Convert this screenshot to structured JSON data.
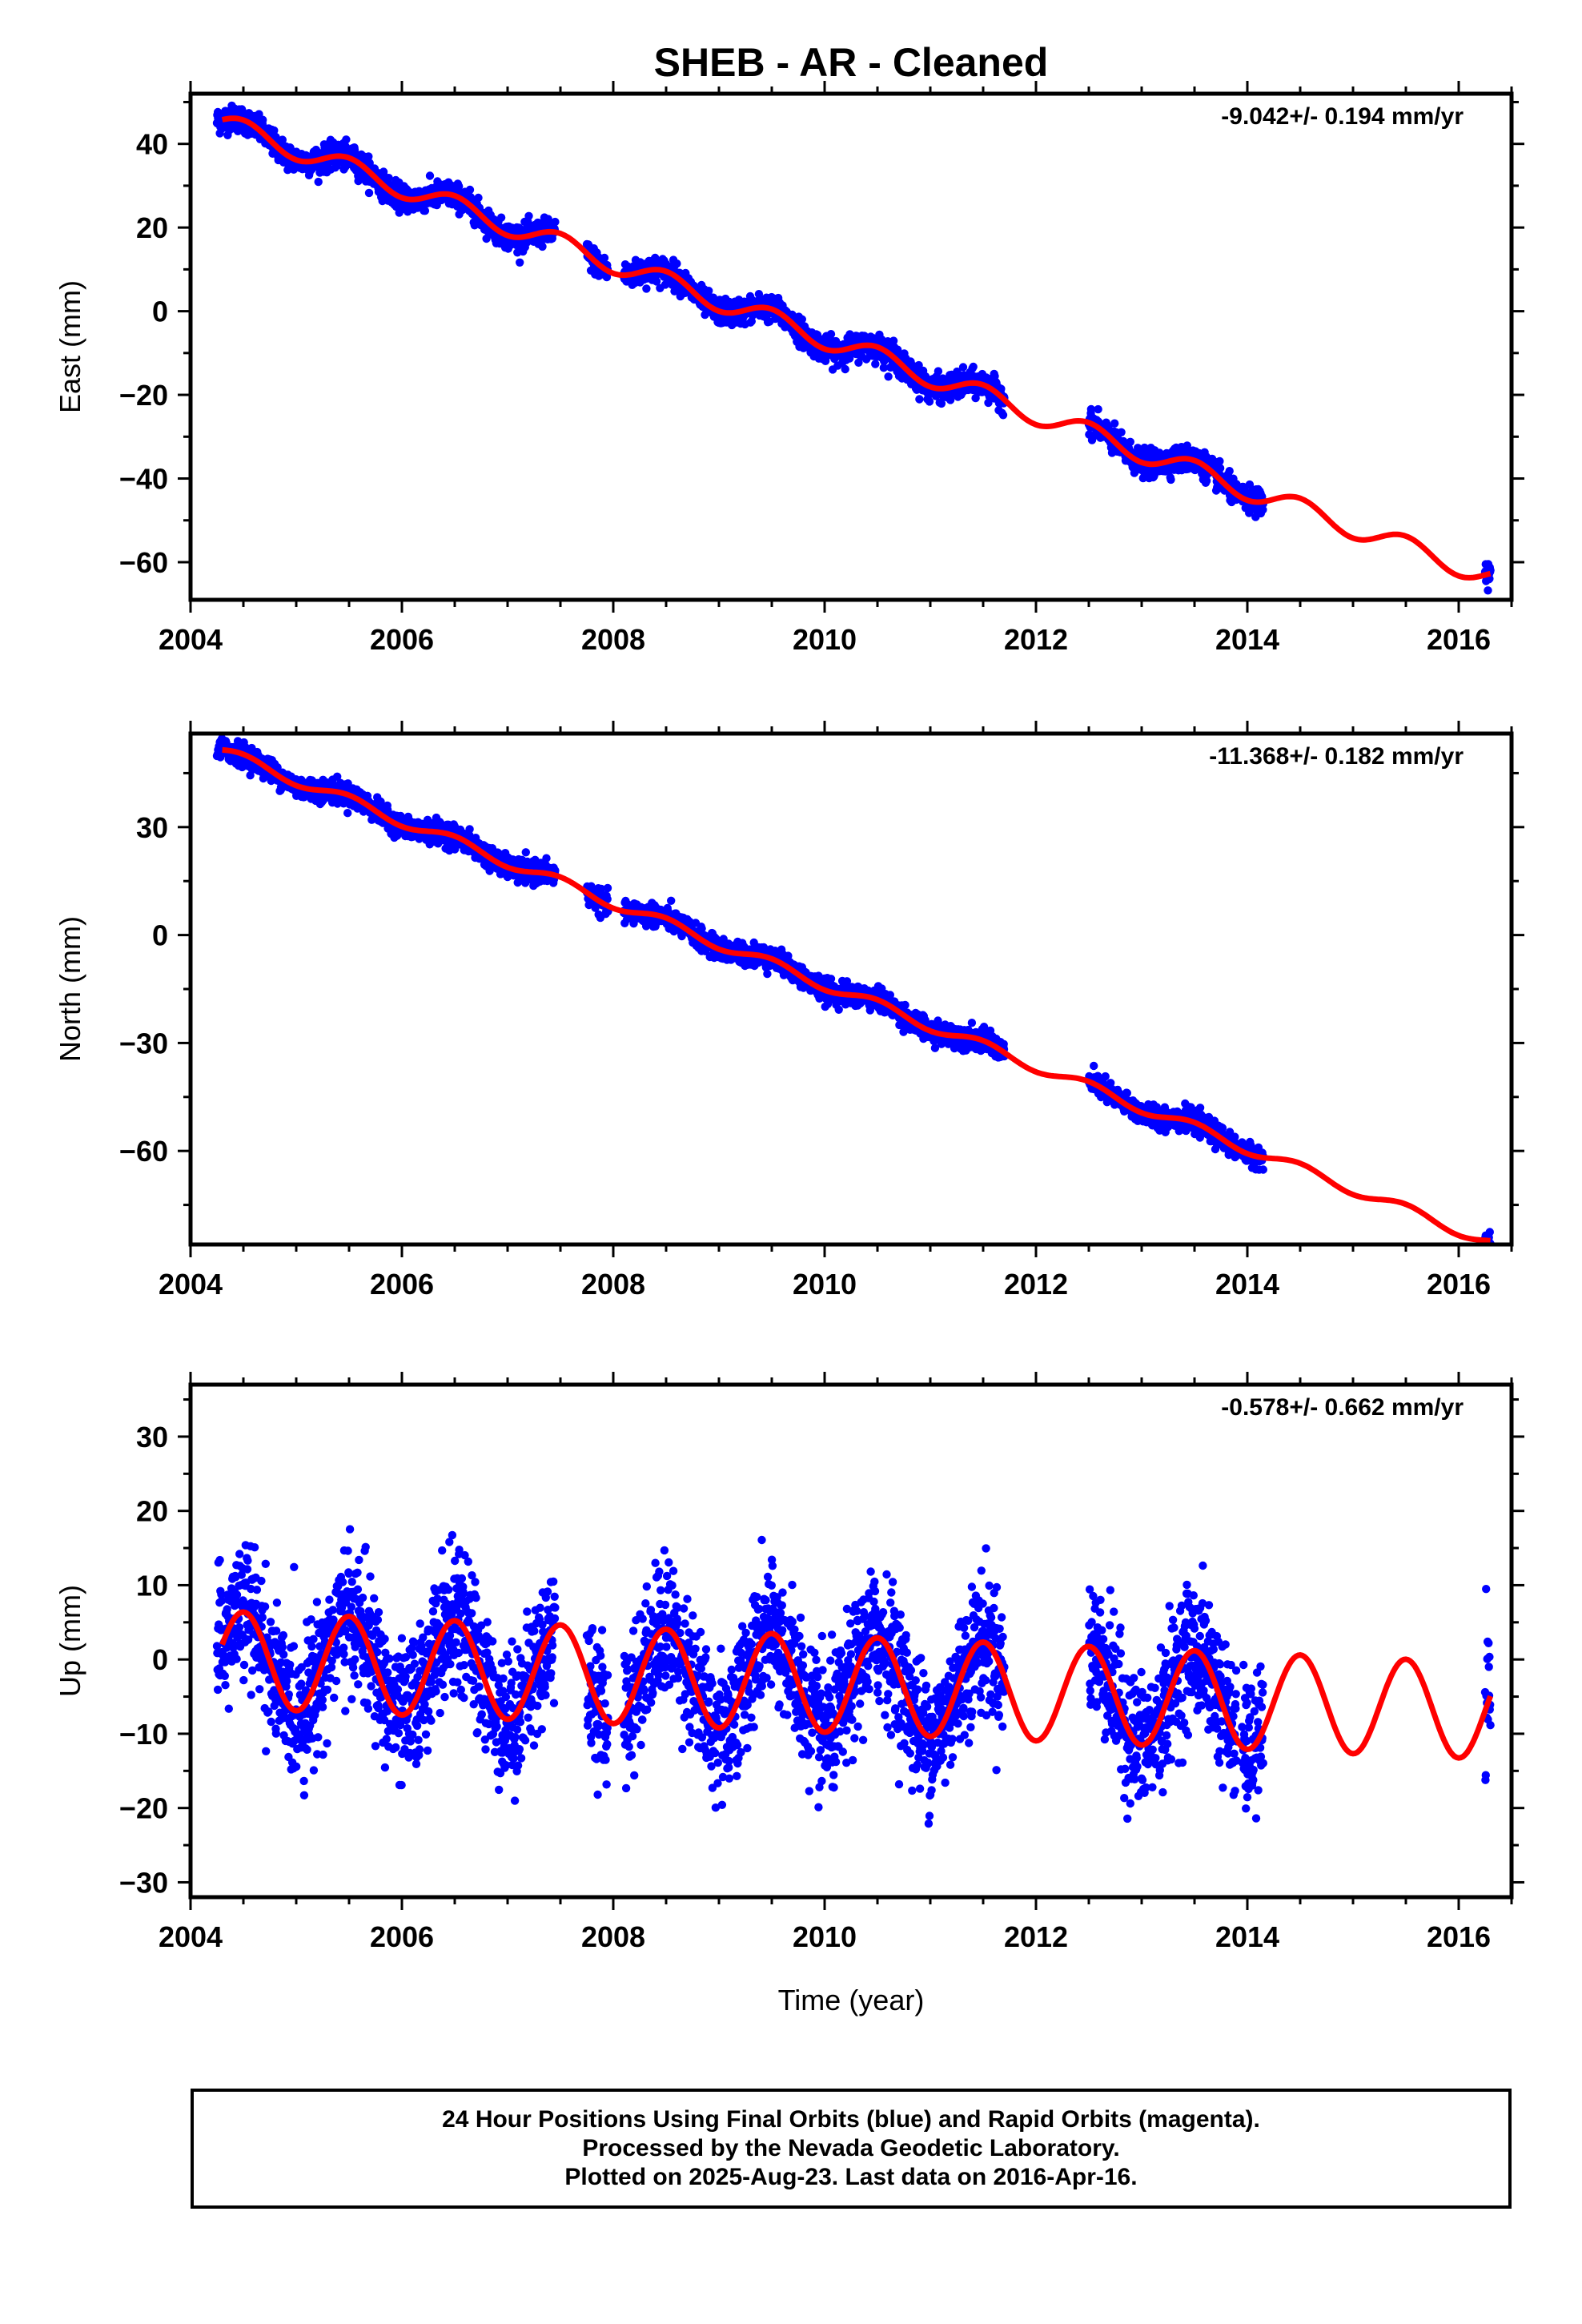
{
  "title": "SHEB  - AR - Cleaned",
  "xlabel": "Time (year)",
  "caption": [
    "24 Hour Positions Using Final Orbits (blue) and Rapid Orbits (magenta).",
    "Processed by the Nevada Geodetic Laboratory.",
    "Plotted on 2025-Aug-23. Last data on 2016-Apr-16."
  ],
  "colors": {
    "points": "#0000ff",
    "model": "#ff0000",
    "frame": "#000000"
  },
  "chart_data": [
    {
      "type": "scatter",
      "ylabel": "East (mm)",
      "rate_label": "-9.042+/- 0.194 mm/yr",
      "xlim": [
        2004,
        2016.5
      ],
      "ylim": [
        -69,
        52
      ],
      "x_ticks": [
        2004,
        2006,
        2008,
        2010,
        2012,
        2014,
        2016
      ],
      "y_ticks": [
        -60,
        -40,
        -20,
        0,
        20,
        40
      ],
      "rate_mm_per_yr": -9.042,
      "annual_amplitude_mm": 2.5,
      "anchor": [
        2004.3,
        45
      ],
      "data_segments": [
        [
          2004.25,
          2007.45
        ],
        [
          2007.75,
          2007.95
        ],
        [
          2008.1,
          2011.7
        ],
        [
          2012.5,
          2013.9
        ],
        [
          2013.95,
          2014.15
        ],
        [
          2016.25,
          2016.3
        ]
      ],
      "scatter_mm": 1.5,
      "grid": false
    },
    {
      "type": "scatter",
      "ylabel": "North (mm)",
      "rate_label": "-11.368+/- 0.182 mm/yr",
      "xlim": [
        2004,
        2016.5
      ],
      "ylim": [
        -86,
        56
      ],
      "x_ticks": [
        2004,
        2006,
        2008,
        2010,
        2012,
        2014,
        2016
      ],
      "y_ticks": [
        -60,
        -30,
        0,
        30
      ],
      "rate_mm_per_yr": -11.368,
      "annual_amplitude_mm": 1.5,
      "anchor": [
        2004.3,
        51
      ],
      "data_segments": [
        [
          2004.25,
          2007.45
        ],
        [
          2007.75,
          2007.95
        ],
        [
          2008.1,
          2011.7
        ],
        [
          2012.5,
          2013.9
        ],
        [
          2013.95,
          2014.15
        ],
        [
          2016.25,
          2016.3
        ]
      ],
      "scatter_mm": 1.5,
      "grid": false
    },
    {
      "type": "scatter",
      "ylabel": "Up (mm)",
      "rate_label": "-0.578+/- 0.662 mm/yr",
      "xlim": [
        2004,
        2016.5
      ],
      "ylim": [
        -32,
        37
      ],
      "x_ticks": [
        2004,
        2006,
        2008,
        2010,
        2012,
        2014,
        2016
      ],
      "y_ticks": [
        -30,
        -20,
        -10,
        0,
        10,
        20,
        30
      ],
      "rate_mm_per_yr": -0.578,
      "annual_amplitude_mm": 6.5,
      "anchor": [
        2004.3,
        0
      ],
      "data_segments": [
        [
          2004.25,
          2007.45
        ],
        [
          2007.75,
          2007.95
        ],
        [
          2008.1,
          2011.7
        ],
        [
          2012.5,
          2013.9
        ],
        [
          2013.95,
          2014.15
        ],
        [
          2016.25,
          2016.3
        ]
      ],
      "scatter_mm": 4.5,
      "grid": false
    }
  ]
}
